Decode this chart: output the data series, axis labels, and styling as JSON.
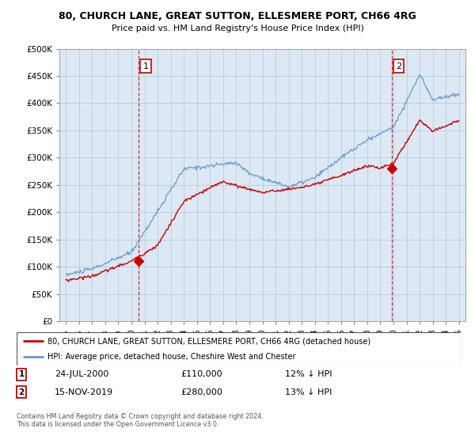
{
  "title": "80, CHURCH LANE, GREAT SUTTON, ELLESMERE PORT, CH66 4RG",
  "subtitle": "Price paid vs. HM Land Registry's House Price Index (HPI)",
  "legend_entry1": "80, CHURCH LANE, GREAT SUTTON, ELLESMERE PORT, CH66 4RG (detached house)",
  "legend_entry2": "HPI: Average price, detached house, Cheshire West and Chester",
  "annotation1_date": "24-JUL-2000",
  "annotation1_price": "£110,000",
  "annotation1_hpi": "12% ↓ HPI",
  "annotation2_date": "15-NOV-2019",
  "annotation2_price": "£280,000",
  "annotation2_hpi": "13% ↓ HPI",
  "footer": "Contains HM Land Registry data © Crown copyright and database right 2024.\nThis data is licensed under the Open Government Licence v3.0.",
  "red_color": "#cc0000",
  "blue_color": "#6699cc",
  "marker1_x": 2000.57,
  "marker2_x": 2019.88,
  "marker1_y": 110000,
  "marker2_y": 280000,
  "ylim": [
    0,
    500000
  ],
  "yticks": [
    0,
    50000,
    100000,
    150000,
    200000,
    250000,
    300000,
    350000,
    400000,
    450000,
    500000
  ],
  "xlim_start": 1994.5,
  "xlim_end": 2025.5,
  "chart_bg": "#dce9f5"
}
